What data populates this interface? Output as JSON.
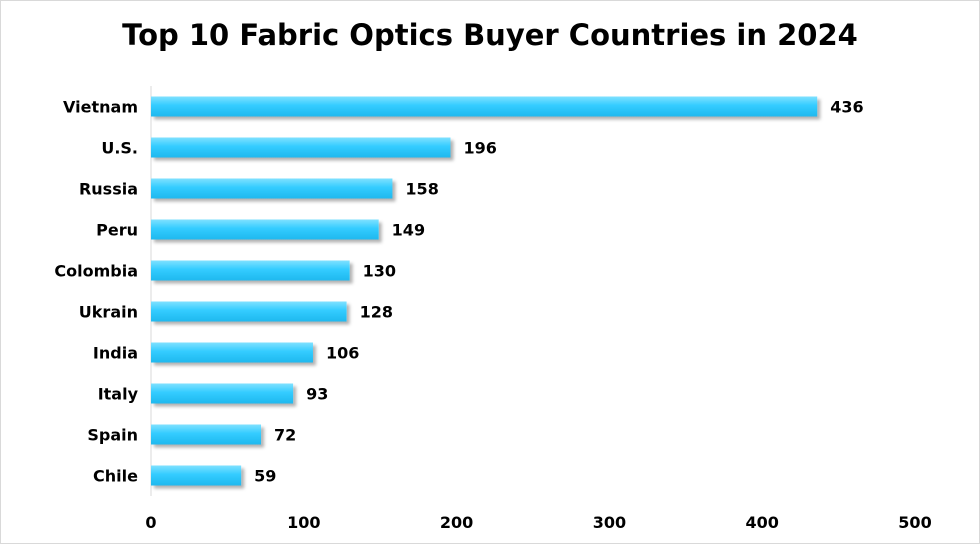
{
  "chart_data": {
    "type": "bar",
    "orientation": "horizontal",
    "title": "Top 10 Fabric Optics Buyer Countries in 2024",
    "categories": [
      "Vietnam",
      "U.S.",
      "Russia",
      "Peru",
      "Colombia",
      "Ukrain",
      "India",
      "Italy",
      "Spain",
      "Chile"
    ],
    "values": [
      436,
      196,
      158,
      149,
      130,
      128,
      106,
      93,
      72,
      59
    ],
    "xlim": [
      0,
      500
    ],
    "x_ticks": [
      "0",
      "100",
      "200",
      "300",
      "400",
      "500"
    ],
    "data_labels": true,
    "grid": false,
    "legend": "none",
    "colors": {
      "bar": "#33ccff",
      "bar_highlight": "#7fe1ff",
      "axis": "#d9d9d9"
    }
  }
}
